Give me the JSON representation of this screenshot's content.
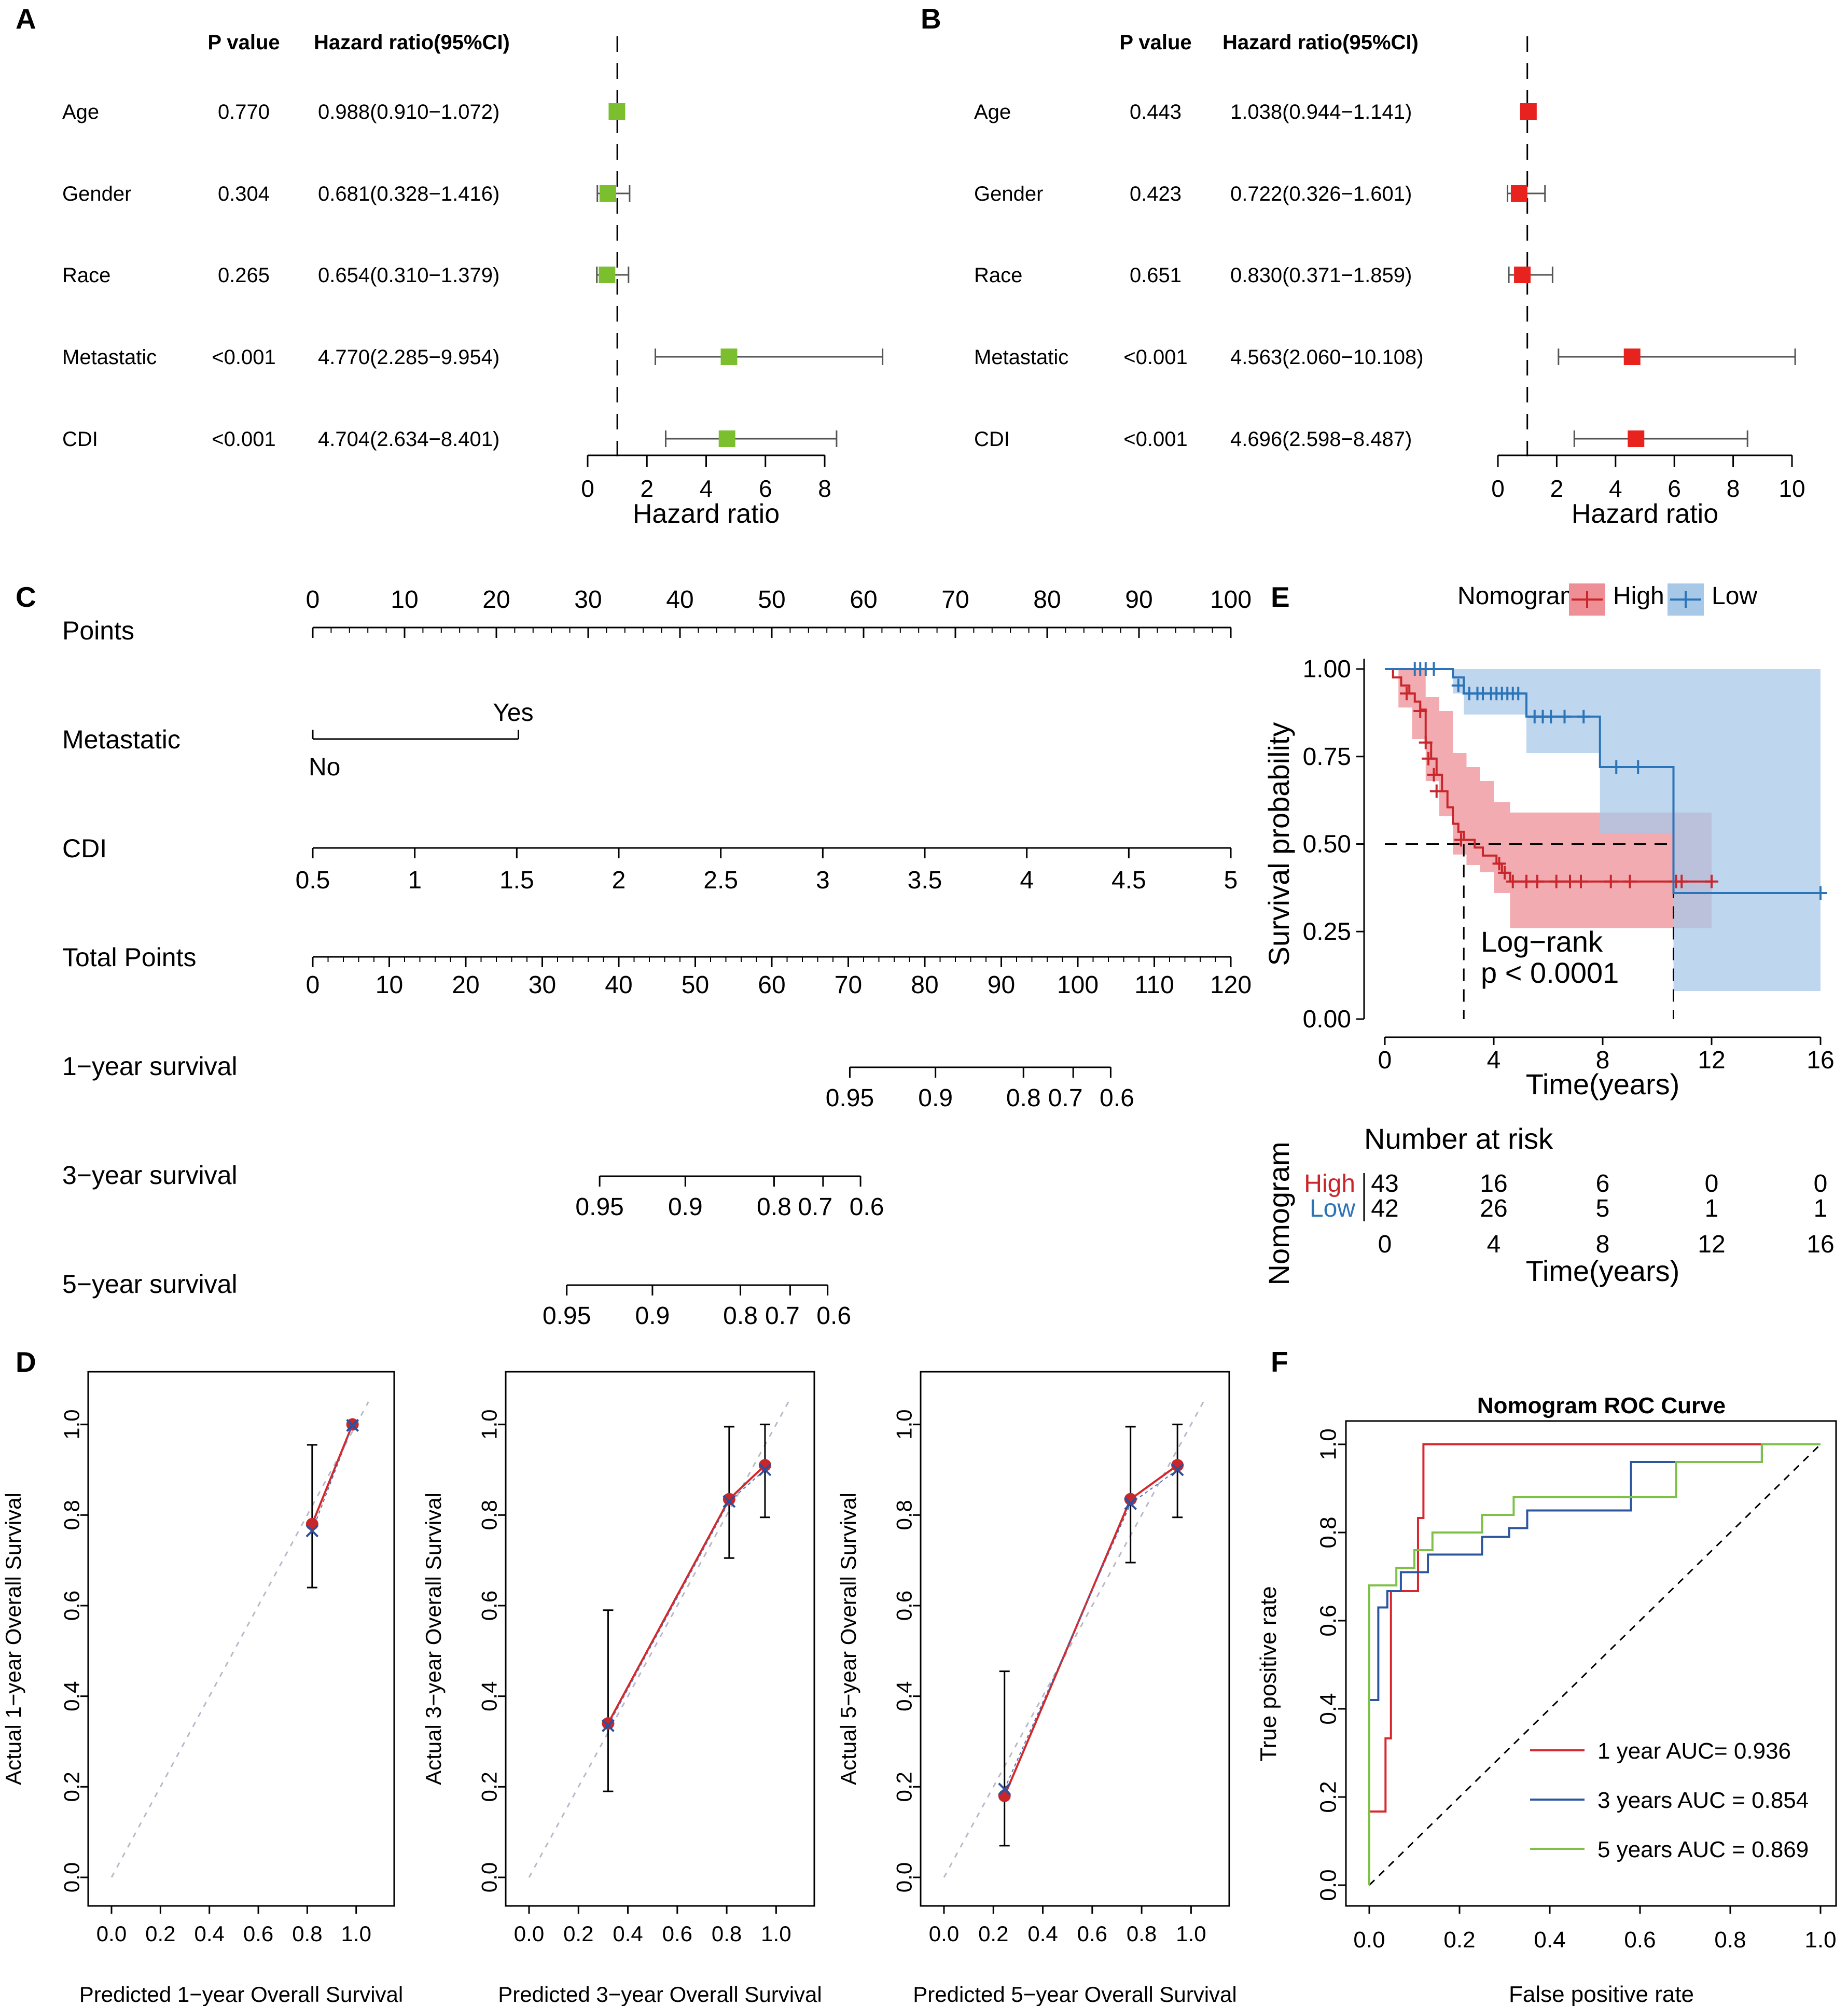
{
  "panels": {
    "A": "A",
    "B": "B",
    "C": "C",
    "D": "D",
    "E": "E",
    "F": "F"
  },
  "chart_data": [
    {
      "id": "A",
      "type": "forest",
      "label": "A",
      "columns": {
        "pvalue": "P value",
        "hr": "Hazard ratio(95%CI)"
      },
      "xlabel": "Hazard ratio",
      "xlim": [
        0,
        8
      ],
      "xticks": [
        0,
        2,
        4,
        6,
        8
      ],
      "reference": 1,
      "color": "#7cbf2e",
      "rows": [
        {
          "name": "Age",
          "p": "0.770",
          "hr_text": "0.988(0.910−1.072)",
          "hr": 0.988,
          "lo": 0.91,
          "hi": 1.072
        },
        {
          "name": "Gender",
          "p": "0.304",
          "hr_text": "0.681(0.328−1.416)",
          "hr": 0.681,
          "lo": 0.328,
          "hi": 1.416
        },
        {
          "name": "Race",
          "p": "0.265",
          "hr_text": "0.654(0.310−1.379)",
          "hr": 0.654,
          "lo": 0.31,
          "hi": 1.379
        },
        {
          "name": "Metastatic",
          "p": "<0.001",
          "hr_text": "4.770(2.285−9.954)",
          "hr": 4.77,
          "lo": 2.285,
          "hi": 9.954
        },
        {
          "name": "CDI",
          "p": "<0.001",
          "hr_text": "4.704(2.634−8.401)",
          "hr": 4.704,
          "lo": 2.634,
          "hi": 8.401
        }
      ]
    },
    {
      "id": "B",
      "type": "forest",
      "label": "B",
      "columns": {
        "pvalue": "P value",
        "hr": "Hazard ratio(95%CI)"
      },
      "xlabel": "Hazard ratio",
      "xlim": [
        0,
        10
      ],
      "xticks": [
        0,
        2,
        4,
        6,
        8,
        10
      ],
      "reference": 1,
      "color": "#e8231f",
      "rows": [
        {
          "name": "Age",
          "p": "0.443",
          "hr_text": "1.038(0.944−1.141)",
          "hr": 1.038,
          "lo": 0.944,
          "hi": 1.141
        },
        {
          "name": "Gender",
          "p": "0.423",
          "hr_text": "0.722(0.326−1.601)",
          "hr": 0.722,
          "lo": 0.326,
          "hi": 1.601
        },
        {
          "name": "Race",
          "p": "0.651",
          "hr_text": "0.830(0.371−1.859)",
          "hr": 0.83,
          "lo": 0.371,
          "hi": 1.859
        },
        {
          "name": "Metastatic",
          "p": "<0.001",
          "hr_text": "4.563(2.060−10.108)",
          "hr": 4.563,
          "lo": 2.06,
          "hi": 10.108
        },
        {
          "name": "CDI",
          "p": "<0.001",
          "hr_text": "4.696(2.598−8.487)",
          "hr": 4.696,
          "lo": 2.598,
          "hi": 8.487
        }
      ]
    },
    {
      "id": "C",
      "type": "nomogram",
      "label": "C",
      "rows": [
        {
          "name": "Points",
          "kind": "points",
          "ticks": [
            0,
            10,
            20,
            30,
            40,
            50,
            60,
            70,
            80,
            90,
            100
          ],
          "minor_step": 2
        },
        {
          "name": "Metastatic",
          "kind": "factor",
          "levels": [
            {
              "label": "No",
              "points": 0
            },
            {
              "label": "Yes",
              "points": 22.4
            }
          ]
        },
        {
          "name": "CDI",
          "kind": "continuous",
          "ticks": [
            "0.5",
            "1",
            "1.5",
            "2",
            "2.5",
            "3",
            "3.5",
            "4",
            "4.5",
            "5"
          ],
          "tick_values": [
            0.5,
            1,
            1.5,
            2,
            2.5,
            3,
            3.5,
            4,
            4.5,
            5
          ],
          "points_range": [
            0,
            100
          ]
        },
        {
          "name": "Total Points",
          "kind": "total",
          "ticks": [
            0,
            10,
            20,
            30,
            40,
            50,
            60,
            70,
            80,
            90,
            100,
            110,
            120
          ],
          "minor_step": 2
        },
        {
          "name": "1−year survival",
          "kind": "survival",
          "ticks": [
            "0.95",
            "0.9",
            "0.8",
            "0.7",
            "0.6"
          ],
          "total_points": [
            70.2,
            81.4,
            92.9,
            99.4,
            104.3
          ]
        },
        {
          "name": "3−year survival",
          "kind": "survival",
          "ticks": [
            "0.95",
            "0.9",
            "0.8",
            "0.7",
            "0.6"
          ],
          "total_points": [
            37.5,
            48.7,
            60.3,
            66.7,
            71.6
          ]
        },
        {
          "name": "5−year survival",
          "kind": "survival",
          "ticks": [
            "0.95",
            "0.9",
            "0.8",
            "0.7",
            "0.6"
          ],
          "total_points": [
            33.2,
            44.4,
            55.9,
            62.4,
            67.3
          ]
        }
      ]
    },
    {
      "id": "E",
      "type": "kaplan-meier",
      "label": "E",
      "legend_title": "Nomogram",
      "legend": [
        "High",
        "Low"
      ],
      "xlabel": "Time(years)",
      "ylabel": "Survival probability",
      "xlim": [
        0,
        16
      ],
      "xticks": [
        0,
        4,
        8,
        12,
        16
      ],
      "ylim": [
        0,
        1
      ],
      "yticks": [
        "0.00",
        "0.25",
        "0.50",
        "0.75",
        "1.00"
      ],
      "annotation": [
        "Log−rank",
        "p < 0.0001"
      ],
      "median_times": [
        2.9,
        10.6
      ],
      "series": [
        {
          "name": "High",
          "color": "#c9262b",
          "fill": "#ee8f95",
          "steps": [
            [
              0,
              1
            ],
            [
              0.3,
              0.976
            ],
            [
              0.6,
              0.953
            ],
            [
              0.9,
              0.93
            ],
            [
              1.1,
              0.907
            ],
            [
              1.3,
              0.884
            ],
            [
              1.5,
              0.79
            ],
            [
              1.7,
              0.744
            ],
            [
              1.9,
              0.698
            ],
            [
              2.1,
              0.651
            ],
            [
              2.3,
              0.605
            ],
            [
              2.5,
              0.558
            ],
            [
              2.7,
              0.535
            ],
            [
              2.9,
              0.512
            ],
            [
              3.3,
              0.49
            ],
            [
              3.6,
              0.467
            ],
            [
              4.1,
              0.444
            ],
            [
              4.3,
              0.418
            ],
            [
              4.6,
              0.393
            ],
            [
              12,
              0.393
            ]
          ],
          "band": [
            [
              0,
              1,
              1
            ],
            [
              0.5,
              0.89,
              1
            ],
            [
              1,
              0.8,
              1
            ],
            [
              1.5,
              0.68,
              0.92
            ],
            [
              2,
              0.58,
              0.88
            ],
            [
              2.5,
              0.47,
              0.76
            ],
            [
              3,
              0.44,
              0.72
            ],
            [
              3.5,
              0.42,
              0.68
            ],
            [
              4,
              0.36,
              0.62
            ],
            [
              4.6,
              0.26,
              0.59
            ],
            [
              12,
              0.26,
              0.59
            ]
          ],
          "censor": [
            [
              0.8,
              0.93
            ],
            [
              1.3,
              0.88
            ],
            [
              1.5,
              0.79
            ],
            [
              1.6,
              0.744
            ],
            [
              1.8,
              0.698
            ],
            [
              1.9,
              0.651
            ],
            [
              2.8,
              0.512
            ],
            [
              4.2,
              0.444
            ],
            [
              4.4,
              0.418
            ],
            [
              4.7,
              0.393
            ],
            [
              5.2,
              0.393
            ],
            [
              5.6,
              0.393
            ],
            [
              6.3,
              0.393
            ],
            [
              6.8,
              0.393
            ],
            [
              7.2,
              0.393
            ],
            [
              8.3,
              0.393
            ],
            [
              9,
              0.393
            ],
            [
              10.7,
              0.393
            ],
            [
              10.9,
              0.393
            ],
            [
              12,
              0.393
            ]
          ]
        },
        {
          "name": "Low",
          "color": "#2c74b8",
          "fill": "#a8c8e8",
          "steps": [
            [
              0,
              1
            ],
            [
              2.5,
              0.976
            ],
            [
              2.9,
              0.93
            ],
            [
              5.2,
              0.864
            ],
            [
              7.9,
              0.72
            ],
            [
              10.6,
              0.36
            ],
            [
              16,
              0.36
            ]
          ],
          "band": [
            [
              0,
              1,
              1
            ],
            [
              2.5,
              0.93,
              1
            ],
            [
              2.9,
              0.87,
              1
            ],
            [
              5.2,
              0.76,
              1
            ],
            [
              7.9,
              0.53,
              1
            ],
            [
              10.6,
              0.08,
              1
            ],
            [
              16,
              0.08,
              1
            ]
          ],
          "censor": [
            [
              1.1,
              1
            ],
            [
              1.3,
              1
            ],
            [
              1.5,
              1
            ],
            [
              1.8,
              1
            ],
            [
              2.7,
              0.953
            ],
            [
              3.1,
              0.93
            ],
            [
              3.4,
              0.93
            ],
            [
              3.6,
              0.93
            ],
            [
              3.9,
              0.93
            ],
            [
              4.1,
              0.93
            ],
            [
              4.3,
              0.93
            ],
            [
              4.5,
              0.93
            ],
            [
              4.7,
              0.93
            ],
            [
              4.9,
              0.93
            ],
            [
              5.5,
              0.864
            ],
            [
              5.8,
              0.864
            ],
            [
              6.1,
              0.864
            ],
            [
              6.6,
              0.864
            ],
            [
              7.3,
              0.864
            ],
            [
              8.5,
              0.72
            ],
            [
              9.3,
              0.72
            ],
            [
              16,
              0.36
            ]
          ]
        }
      ],
      "risk_table": {
        "title": "Number at risk",
        "ylabel": "Nomogram",
        "xlabel": "Time(years)",
        "times": [
          0,
          4,
          8,
          12,
          16
        ],
        "rows": [
          {
            "name": "High",
            "values": [
              43,
              16,
              6,
              0,
              0
            ]
          },
          {
            "name": "Low",
            "values": [
              42,
              26,
              5,
              1,
              1
            ]
          }
        ]
      }
    },
    {
      "id": "D",
      "type": "calibration",
      "label": "D",
      "plots": [
        {
          "xlabel": "Predicted 1−year Overall Survival",
          "ylabel": "Actual 1−year Overall Survival",
          "points": [
            {
              "x": 0.82,
              "y": 0.78,
              "lo": 0.64,
              "hi": 0.955,
              "cx": 0.82,
              "cy": 0.765
            },
            {
              "x": 0.985,
              "y": 1.0,
              "lo": 1.0,
              "hi": 1.0,
              "cx": 0.985,
              "cy": 0.998
            }
          ]
        },
        {
          "xlabel": "Predicted 3−year Overall Survival",
          "ylabel": "Actual 3−year Overall Survival",
          "points": [
            {
              "x": 0.32,
              "y": 0.34,
              "lo": 0.19,
              "hi": 0.59,
              "cx": 0.32,
              "cy": 0.335
            },
            {
              "x": 0.81,
              "y": 0.835,
              "lo": 0.705,
              "hi": 0.995,
              "cx": 0.81,
              "cy": 0.83
            },
            {
              "x": 0.955,
              "y": 0.91,
              "lo": 0.795,
              "hi": 1.0,
              "cx": 0.955,
              "cy": 0.9
            }
          ]
        },
        {
          "xlabel": "Predicted 5−year Overall Survival",
          "ylabel": "Actual 5−year Overall Survival",
          "points": [
            {
              "x": 0.245,
              "y": 0.18,
              "lo": 0.07,
              "hi": 0.455,
              "cx": 0.245,
              "cy": 0.195
            },
            {
              "x": 0.755,
              "y": 0.835,
              "lo": 0.695,
              "hi": 0.995,
              "cx": 0.755,
              "cy": 0.825
            },
            {
              "x": 0.945,
              "y": 0.91,
              "lo": 0.795,
              "hi": 1.0,
              "cx": 0.945,
              "cy": 0.9
            }
          ]
        }
      ],
      "xticks": [
        "0.0",
        "0.2",
        "0.4",
        "0.6",
        "0.8",
        "1.0"
      ],
      "yticks": [
        "0.0",
        "0.2",
        "0.4",
        "0.6",
        "0.8",
        "1.0"
      ]
    },
    {
      "id": "F",
      "type": "roc",
      "label": "F",
      "title": "Nomogram ROC Curve",
      "xlabel": "False positive rate",
      "ylabel": "True positive rate",
      "xticks": [
        "0.0",
        "0.2",
        "0.4",
        "0.6",
        "0.8",
        "1.0"
      ],
      "yticks": [
        "0.0",
        "0.2",
        "0.4",
        "0.6",
        "0.8",
        "1.0"
      ],
      "series": [
        {
          "name": "1 year AUC= 0.936",
          "color": "#d9272e",
          "points": [
            [
              0,
              0
            ],
            [
              0,
              0.167
            ],
            [
              0.036,
              0.167
            ],
            [
              0.036,
              0.333
            ],
            [
              0.048,
              0.333
            ],
            [
              0.048,
              0.667
            ],
            [
              0.108,
              0.667
            ],
            [
              0.108,
              0.833
            ],
            [
              0.12,
              0.833
            ],
            [
              0.12,
              1
            ],
            [
              1,
              1
            ]
          ]
        },
        {
          "name": "3 years AUC = 0.854",
          "color": "#2c56a0",
          "points": [
            [
              0,
              0
            ],
            [
              0,
              0.42
            ],
            [
              0.02,
              0.42
            ],
            [
              0.02,
              0.63
            ],
            [
              0.04,
              0.63
            ],
            [
              0.04,
              0.667
            ],
            [
              0.07,
              0.667
            ],
            [
              0.07,
              0.71
            ],
            [
              0.13,
              0.71
            ],
            [
              0.13,
              0.75
            ],
            [
              0.25,
              0.75
            ],
            [
              0.25,
              0.79
            ],
            [
              0.31,
              0.79
            ],
            [
              0.31,
              0.81
            ],
            [
              0.35,
              0.81
            ],
            [
              0.35,
              0.85
            ],
            [
              0.58,
              0.85
            ],
            [
              0.58,
              0.96
            ],
            [
              0.87,
              0.96
            ],
            [
              0.87,
              1
            ],
            [
              1,
              1
            ]
          ]
        },
        {
          "name": "5 years AUC = 0.869",
          "color": "#7dc246",
          "points": [
            [
              0,
              0
            ],
            [
              0,
              0.68
            ],
            [
              0.06,
              0.68
            ],
            [
              0.06,
              0.72
            ],
            [
              0.1,
              0.72
            ],
            [
              0.1,
              0.76
            ],
            [
              0.14,
              0.76
            ],
            [
              0.14,
              0.8
            ],
            [
              0.25,
              0.8
            ],
            [
              0.25,
              0.84
            ],
            [
              0.32,
              0.84
            ],
            [
              0.32,
              0.88
            ],
            [
              0.68,
              0.88
            ],
            [
              0.68,
              0.96
            ],
            [
              0.87,
              0.96
            ],
            [
              0.87,
              1
            ],
            [
              1,
              1
            ]
          ]
        }
      ]
    }
  ]
}
